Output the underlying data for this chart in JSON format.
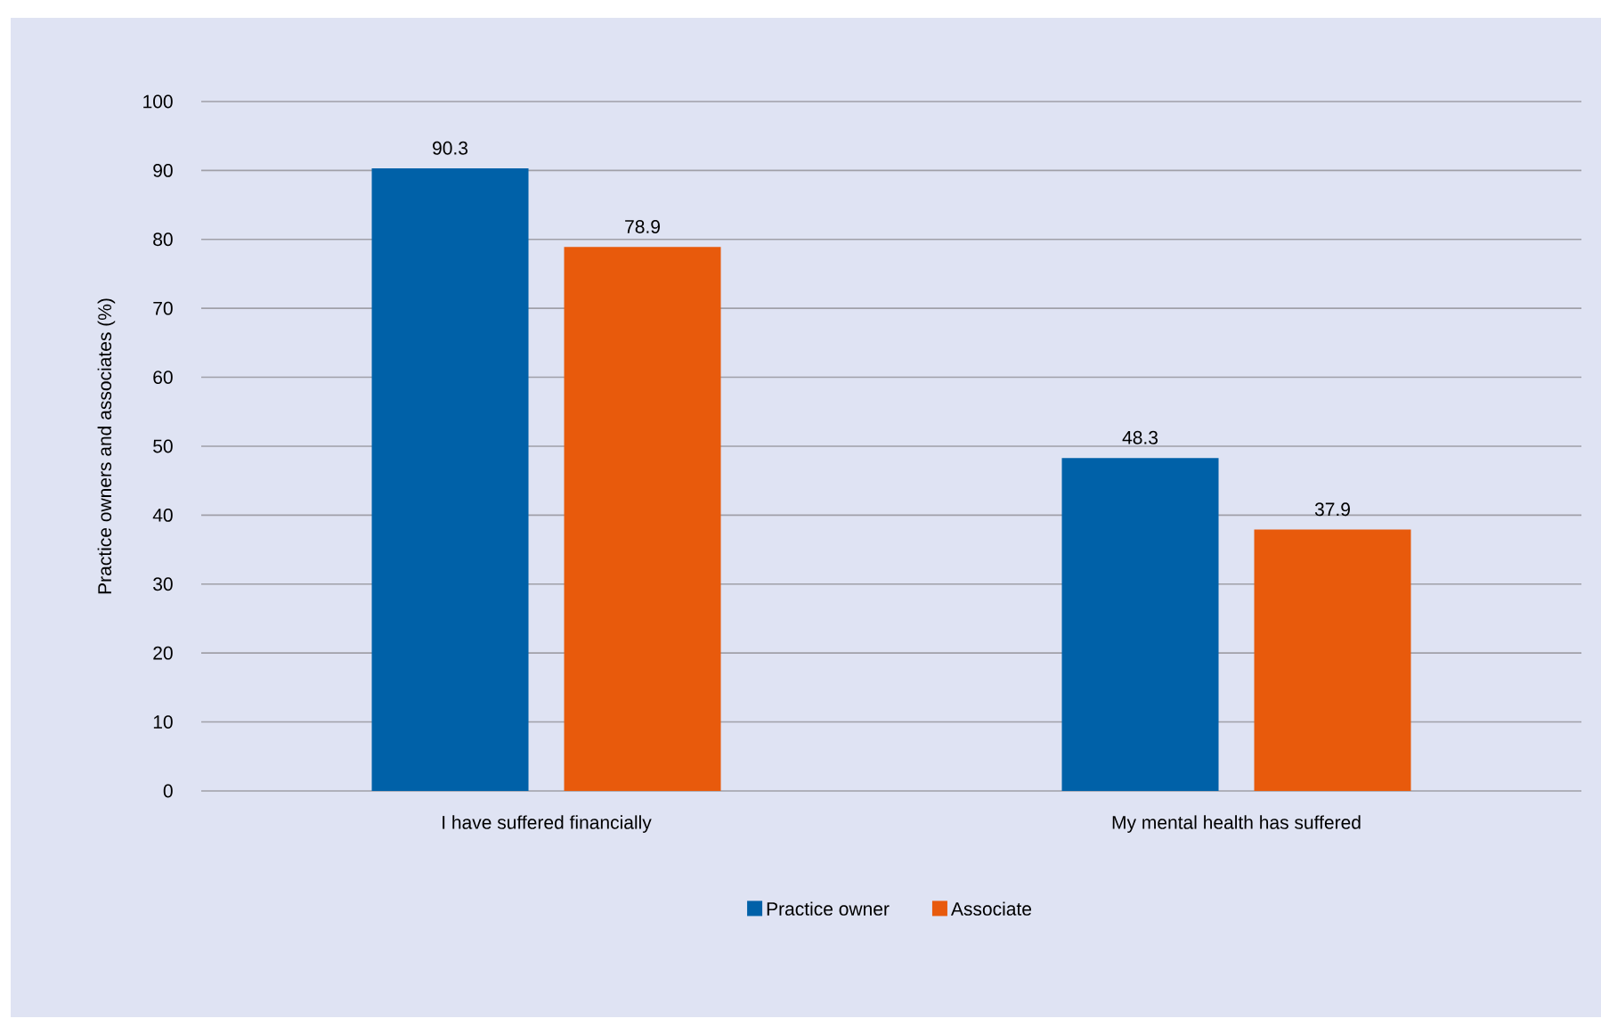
{
  "chart_data": {
    "type": "bar",
    "ylabel": "Practice owners and associates (%)",
    "categories": [
      "I have suffered financially",
      "My mental health has suffered"
    ],
    "series": [
      {
        "name": "Practice owner",
        "color": "#0061a8",
        "values": [
          90.3,
          48.3
        ]
      },
      {
        "name": "Associate",
        "color": "#e85a0c",
        "values": [
          78.9,
          37.9
        ]
      }
    ],
    "ylim": [
      0,
      100
    ],
    "yticks": [
      0,
      10,
      20,
      30,
      40,
      50,
      60,
      70,
      80,
      90,
      100
    ],
    "grid": "y",
    "legend": "bottom",
    "data_labels": true
  }
}
